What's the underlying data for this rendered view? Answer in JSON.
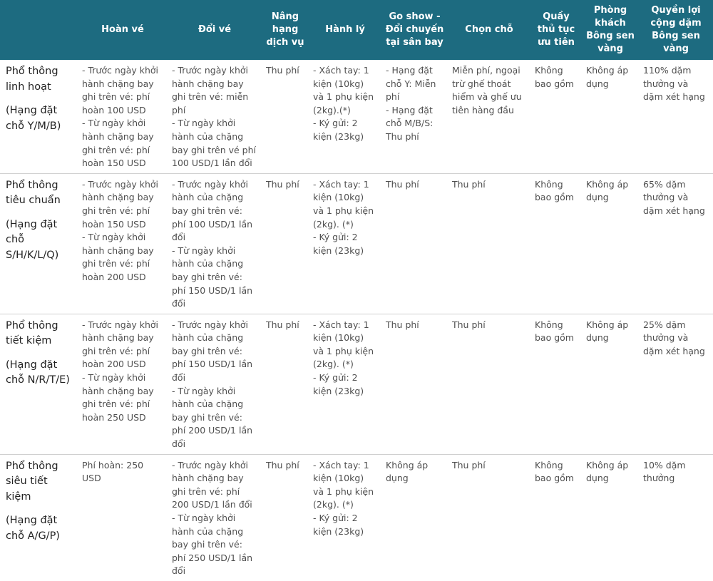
{
  "headers": [
    "",
    "Hoàn vé",
    "Đổi vé",
    "Nâng hạng dịch vụ",
    "Hành lý",
    "Go show - Đổi chuyến tại sân bay",
    "Chọn chỗ",
    "Quầy thủ tục ưu tiên",
    "Phòng khách Bông sen vàng",
    "Quyền lợi cộng dặm Bông sen vàng"
  ],
  "rows": [
    {
      "name": "Phổ thông linh hoạt",
      "code": "(Hạng đặt chỗ Y/M/B)",
      "cells": [
        "- Trước ngày khởi hành chặng bay ghi trên vé: phí hoàn 100 USD\n- Từ ngày khởi hành chặng bay ghi trên vé: phí hoàn 150 USD",
        "- Trước ngày khởi hành chặng bay ghi trên vé: miễn phí\n- Từ ngày khởi hành của chặng bay ghi trên vé phí 100 USD/1 lần đổi",
        "Thu phí",
        "- Xách tay: 1 kiện (10kg) và 1 phụ kiện (2kg).(*)\n- Ký gửi: 2 kiện (23kg)",
        "- Hạng đặt chỗ Y: Miễn phí\n- Hạng đặt chỗ M/B/S: Thu phí",
        "Miễn phí, ngoại trừ ghế thoát hiểm và ghế ưu tiên hàng đầu",
        "Không bao gồm",
        "Không áp dụng",
        "110% dặm thưởng và dặm xét hạng"
      ]
    },
    {
      "name": "Phổ thông tiêu chuẩn",
      "code": "(Hạng đặt chỗ S/H/K/L/Q)",
      "cells": [
        "- Trước ngày khởi hành chặng bay ghi trên vé:  phí hoàn 150 USD\n- Từ ngày khởi hành chặng bay ghi trên vé: phí hoàn 200 USD",
        "- Trước ngày khởi hành của chặng bay ghi trên vé: phí 100 USD/1 lần đổi\n- Từ ngày khởi hành của chặng bay ghi trên vé: phí 150 USD/1 lần đổi",
        "Thu phí",
        "- Xách tay: 1 kiện (10kg) và 1 phụ kiện (2kg). (*)\n- Ký gửi: 2 kiện (23kg)",
        "Thu phí",
        "Thu phí",
        "Không bao gồm",
        "Không áp dụng",
        "65% dặm thưởng và dặm xét hạng"
      ]
    },
    {
      "name": "Phổ thông tiết kiệm",
      "code": "(Hạng đặt chỗ N/R/T/E)",
      "cells": [
        "- Trước ngày khởi hành chặng bay ghi trên vé: phí hoàn 200 USD\n- Từ ngày khởi hành chặng bay ghi trên vé: phí hoàn 250 USD",
        "- Trước ngày khởi hành của chặng bay ghi trên vé: phí 150 USD/1 lần đổi\n- Từ ngày khởi hành của chặng bay ghi trên vé: phí 200 USD/1 lần đổi",
        "Thu phí",
        "- Xách tay: 1 kiện (10kg) và 1 phụ kiện (2kg). (*)\n- Ký gửi: 2 kiện (23kg)",
        "Thu phí",
        "Thu phí",
        "Không bao gồm",
        "Không áp dụng",
        "25% dặm thưởng và dặm xét hạng"
      ]
    },
    {
      "name": "Phổ thông siêu tiết kiệm",
      "code": "(Hạng đặt chỗ A/G/P)",
      "cells": [
        "Phí hoàn: 250 USD",
        "- Trước ngày khởi hành chặng bay ghi trên vé: phí 200 USD/1 lần đổi\n- Từ ngày khởi hành của chặng bay ghi trên vé: phí 250 USD/1 lần đổi",
        "Thu phí",
        "- Xách tay: 1 kiện (10kg) và 1 phụ kiện (2kg). (*)\n- Ký gửi: 2 kiện (23kg)",
        "Không áp dụng",
        "Thu phí",
        "Không bao gồm",
        "Không áp dụng",
        "10% dặm thưởng"
      ]
    }
  ]
}
